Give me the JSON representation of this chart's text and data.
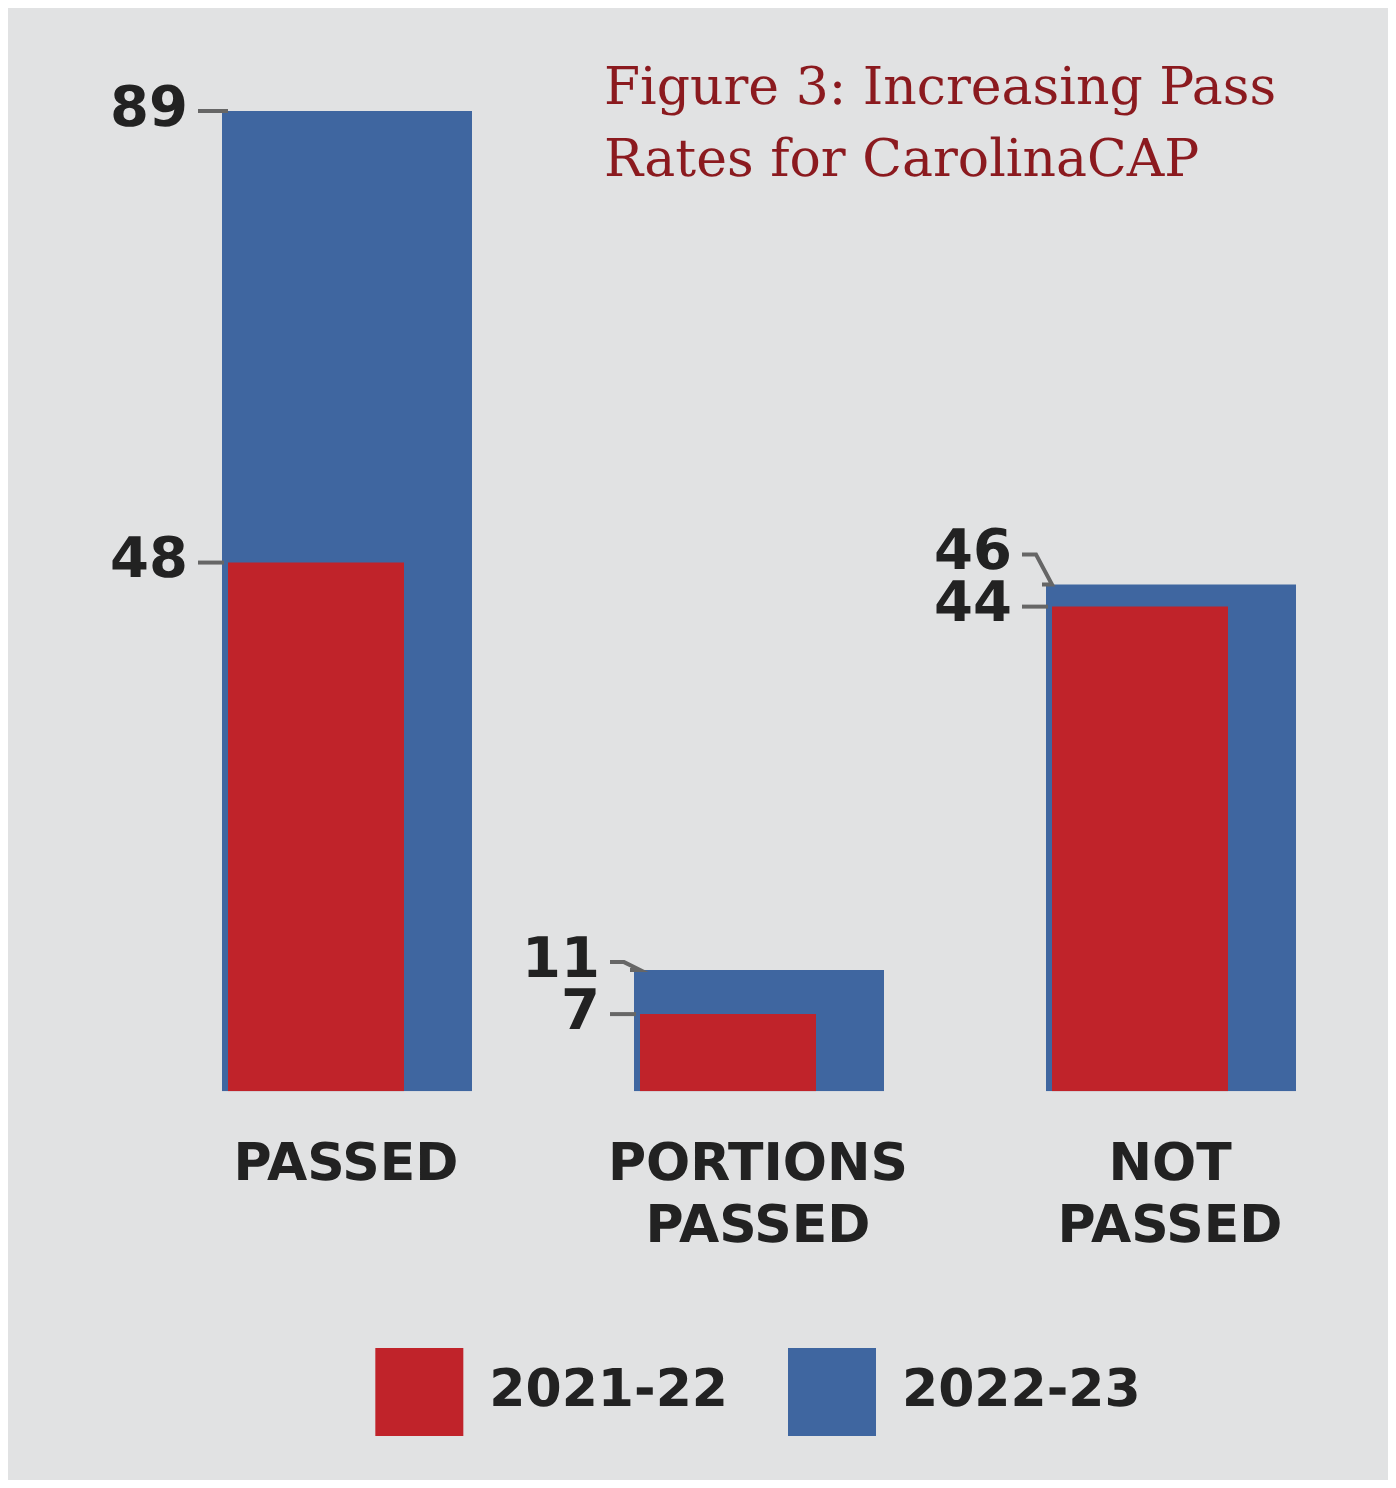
{
  "chart_data": {
    "type": "bar",
    "title": "Figure 3: Increasing Pass Rates for CarolinaCAP",
    "categories": [
      "PASSED",
      "PORTIONS PASSED",
      "NOT PASSED"
    ],
    "series": [
      {
        "name": "2021-22",
        "color": "#c0232a",
        "values": [
          48,
          7,
          44
        ]
      },
      {
        "name": "2022-23",
        "color": "#3f66a0",
        "values": [
          89,
          11,
          46
        ]
      }
    ],
    "data_labels": true,
    "legend": "bottom"
  }
}
